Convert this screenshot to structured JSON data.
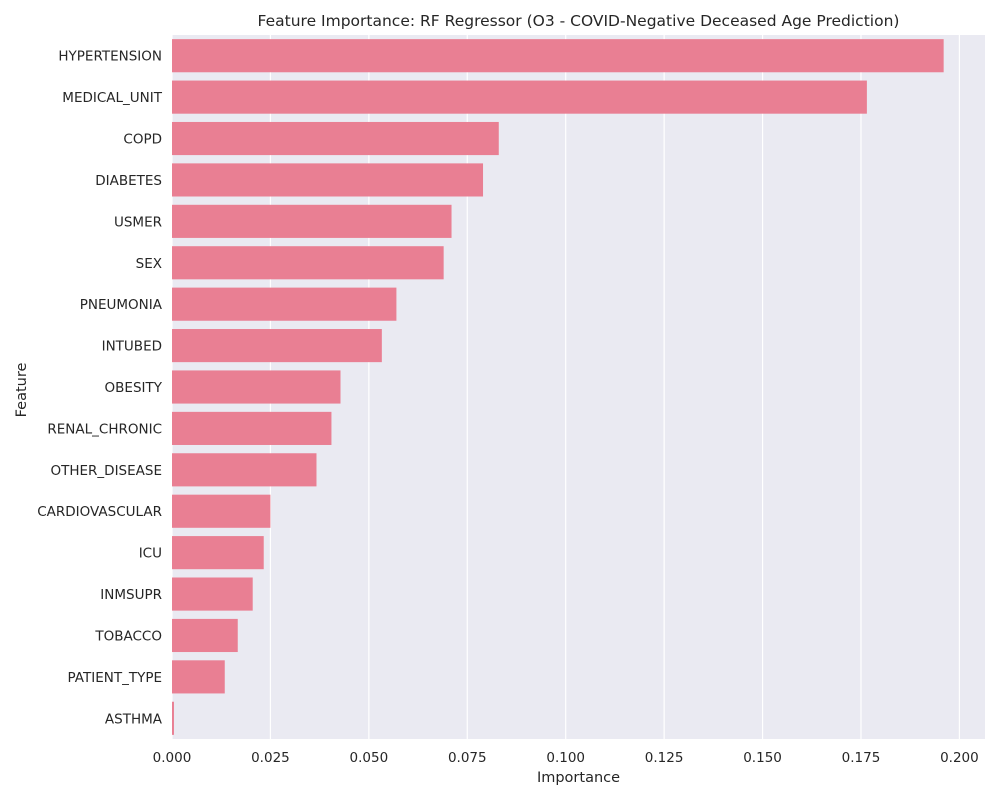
{
  "chart_data": {
    "type": "bar",
    "orientation": "horizontal",
    "title": "Feature Importance: RF Regressor (O3 - COVID-Negative Deceased Age Prediction)",
    "xlabel": "Importance",
    "ylabel": "Feature",
    "xlim": [
      0,
      0.2065
    ],
    "xticks": [
      "0.000",
      "0.025",
      "0.050",
      "0.075",
      "0.100",
      "0.125",
      "0.150",
      "0.175",
      "0.200"
    ],
    "xtick_values": [
      0,
      0.025,
      0.05,
      0.075,
      0.1,
      0.125,
      0.15,
      0.175,
      0.2
    ],
    "grid": true,
    "bar_color": "#e97f93",
    "background_color": "#eaeaf2",
    "categories": [
      "HYPERTENSION",
      "MEDICAL_UNIT",
      "COPD",
      "DIABETES",
      "USMER",
      "SEX",
      "PNEUMONIA",
      "INTUBED",
      "OBESITY",
      "RENAL_CHRONIC",
      "OTHER_DISEASE",
      "CARDIOVASCULAR",
      "ICU",
      "INMSUPR",
      "TOBACCO",
      "PATIENT_TYPE",
      "ASTHMA"
    ],
    "values": [
      0.196,
      0.1765,
      0.083,
      0.079,
      0.071,
      0.069,
      0.057,
      0.0533,
      0.0428,
      0.0405,
      0.0367,
      0.025,
      0.0233,
      0.0205,
      0.0167,
      0.0134,
      0.0005
    ]
  }
}
